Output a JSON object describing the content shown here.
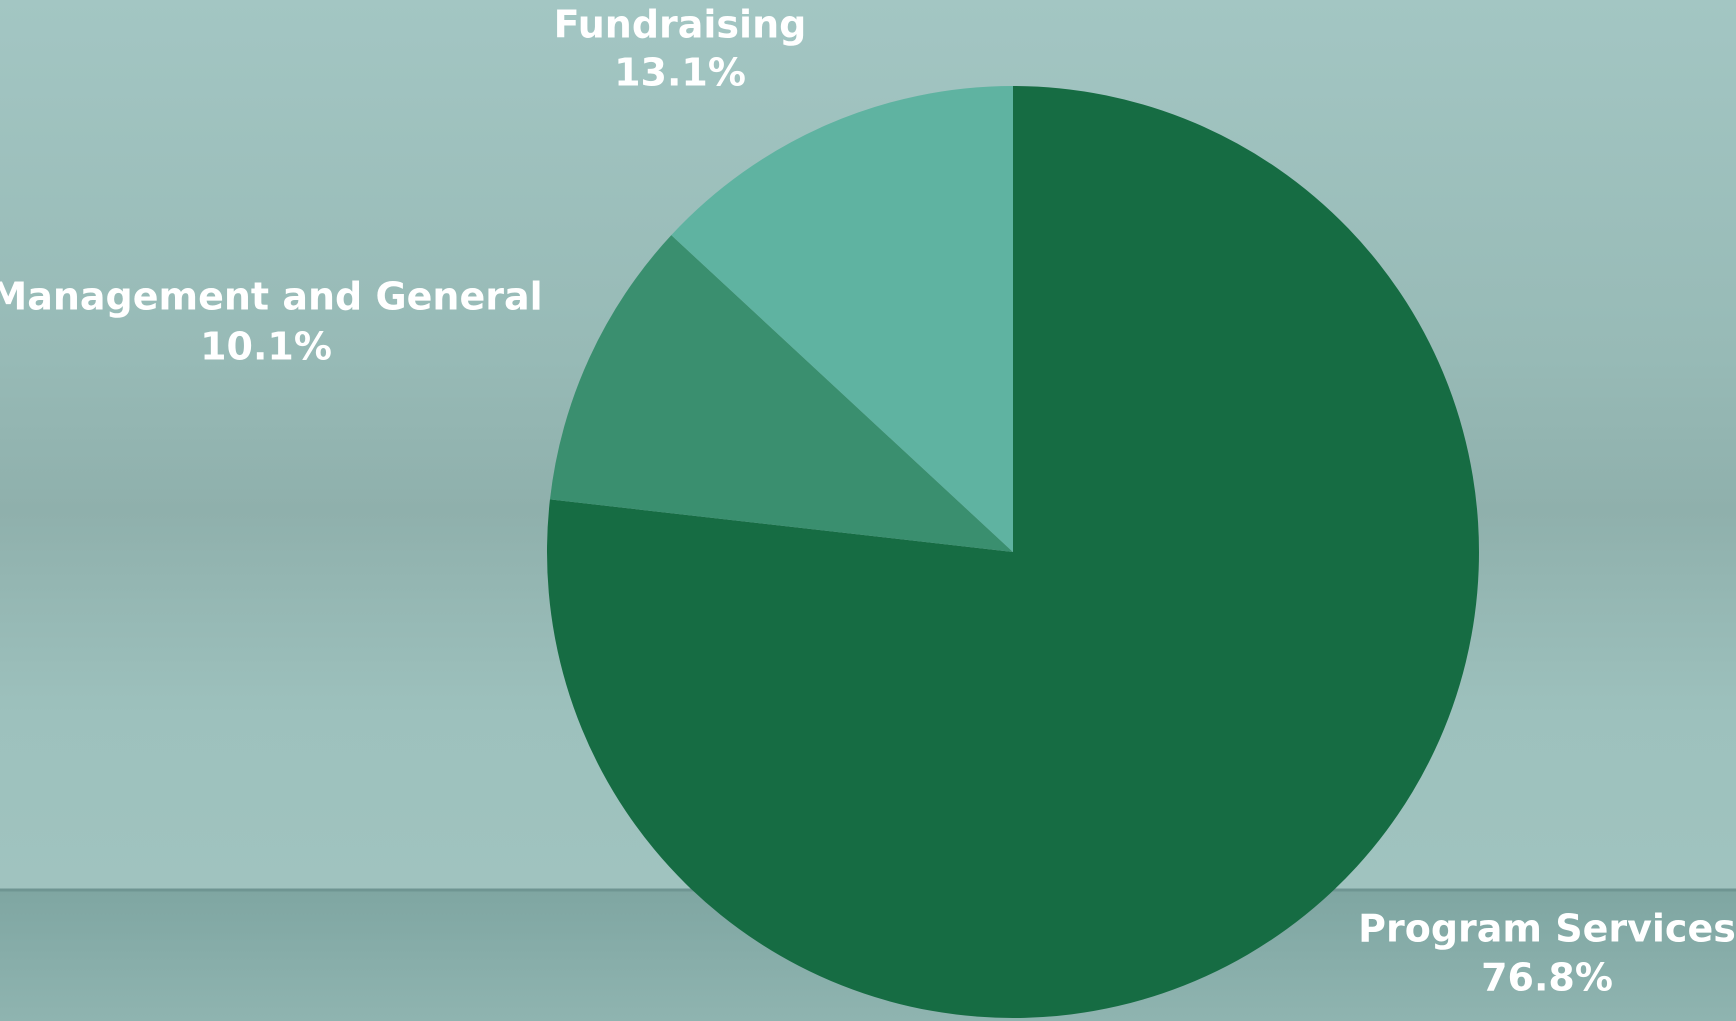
{
  "chart_data": {
    "type": "pie",
    "categories": [
      "Program Services",
      "Management and General",
      "Fundraising"
    ],
    "values": [
      76.8,
      10.1,
      13.1
    ],
    "value_labels": [
      "76.8%",
      "10.1%",
      "13.1%"
    ],
    "colors": [
      "#166c43",
      "#3a8f6f",
      "#5fb3a1"
    ]
  }
}
